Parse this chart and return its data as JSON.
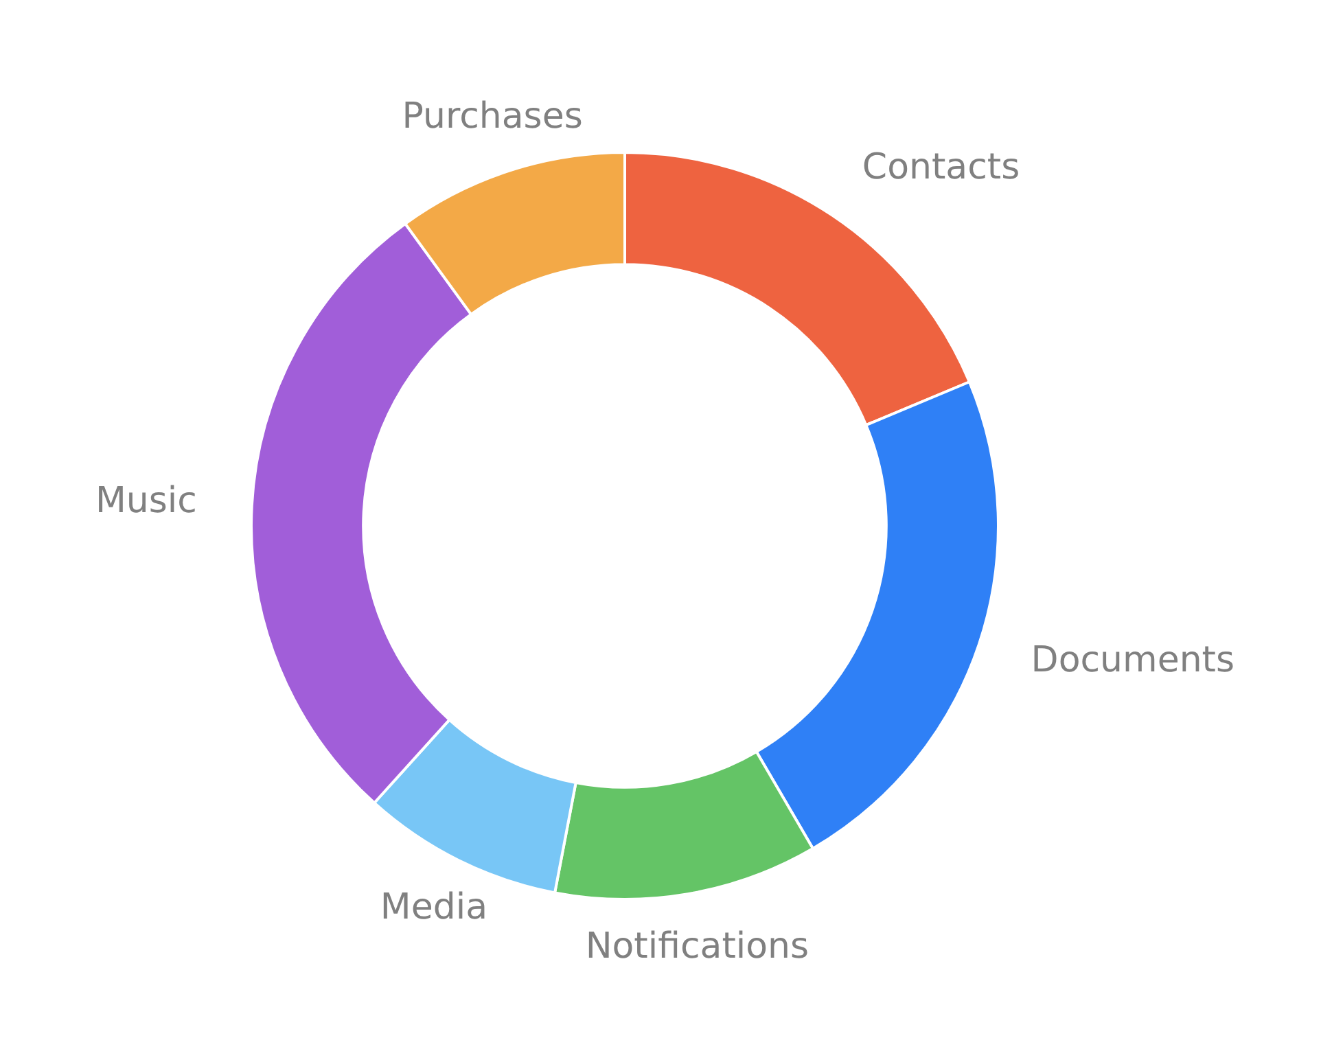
{
  "chart_data": {
    "type": "donut",
    "categories": [
      "Contacts",
      "Documents",
      "Notifications",
      "Media",
      "Music",
      "Purchases"
    ],
    "values": [
      18.7,
      22.9,
      11.4,
      8.7,
      28.3,
      10.0
    ],
    "colors": [
      "#ee6340",
      "#2f80f6",
      "#64c466",
      "#78c6f6",
      "#a15ed9",
      "#f3a947"
    ],
    "legend": false
  }
}
